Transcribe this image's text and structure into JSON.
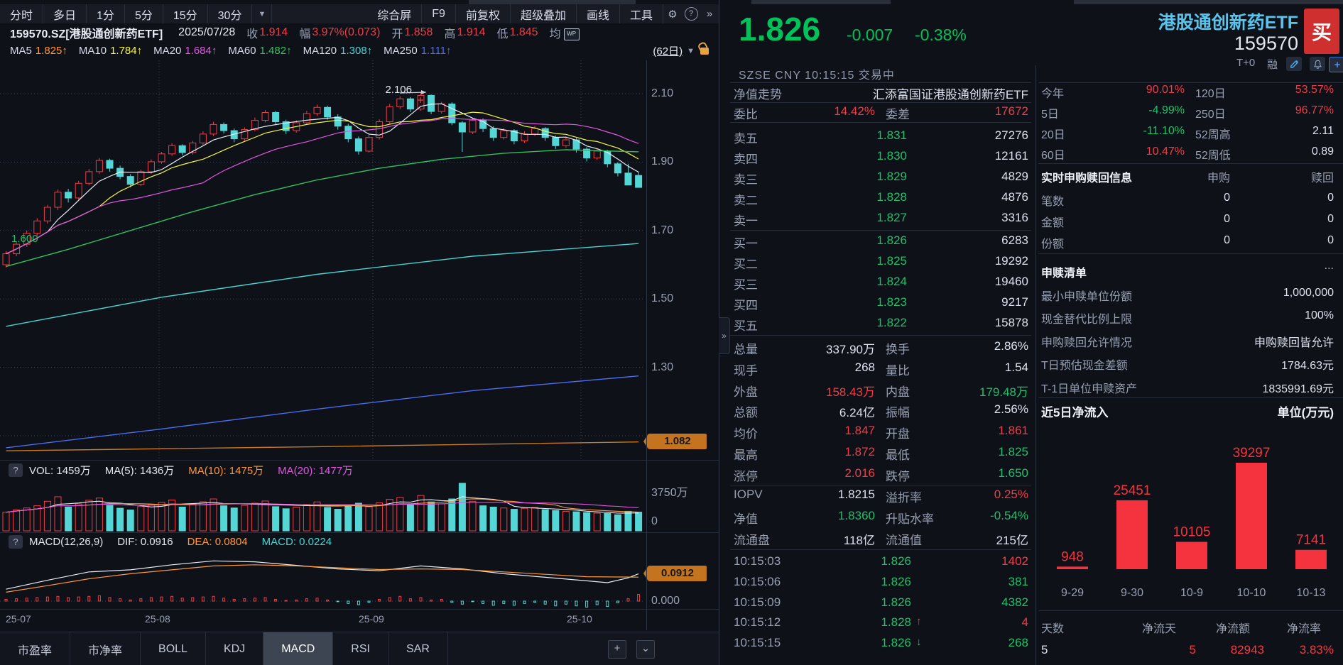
{
  "toolbar": {
    "left_tabs": [
      "分时",
      "多日",
      "1分",
      "5分",
      "15分",
      "30分"
    ],
    "dropdown": "▼",
    "right_tabs": [
      "综合屏",
      "F9",
      "前复权",
      "超级叠加",
      "画线",
      "工具"
    ],
    "gear": "⚙",
    "help": "?",
    "more": "»"
  },
  "info_bar": {
    "symbol": "159570.SZ[港股通创新药ETF]",
    "date": "2025/07/28",
    "pairs": [
      [
        "收",
        "1.914"
      ],
      [
        "幅",
        "3.97%(0.073)"
      ],
      [
        "开",
        "1.858"
      ],
      [
        "高",
        "1.914"
      ],
      [
        "低",
        "1.845"
      ],
      [
        "均",
        ""
      ]
    ],
    "wp": "WP"
  },
  "ma_bar": {
    "items": [
      [
        "MA5",
        "1.825↑",
        "#ff9838"
      ],
      [
        "MA10",
        "1.784↑",
        "#f5f542"
      ],
      [
        "MA20",
        "1.684↑",
        "#e256e2"
      ],
      [
        "MA60",
        "1.482↑",
        "#2fc05f"
      ],
      [
        "MA120",
        "1.308↑",
        "#49d3d3"
      ],
      [
        "MA250",
        "1.111↑",
        "#4a6cf0"
      ]
    ],
    "range": "(62日)",
    "caret": "▼"
  },
  "quote": {
    "price": "1.826",
    "change": "-0.007",
    "change_pct": "-0.38%",
    "name": "港股通创新药ETF",
    "code": "159570",
    "buy": "买",
    "exchange": "SZSE CNY 10:15:15 交易中",
    "tplus": "T+0",
    "rong": "融"
  },
  "nav_row": {
    "label": "净值走势",
    "value": "汇添富国证港股通创新药ETF"
  },
  "wb_row": {
    "l1": "委比",
    "v1": "14.42%",
    "l2": "委差",
    "v2": "17672"
  },
  "order_book": {
    "asks": [
      [
        "卖五",
        "1.831",
        "27276"
      ],
      [
        "卖四",
        "1.830",
        "12161"
      ],
      [
        "卖三",
        "1.829",
        "4829"
      ],
      [
        "卖二",
        "1.828",
        "4876"
      ],
      [
        "卖一",
        "1.827",
        "3316"
      ]
    ],
    "bids": [
      [
        "买一",
        "1.826",
        "6283"
      ],
      [
        "买二",
        "1.825",
        "19292"
      ],
      [
        "买三",
        "1.824",
        "19460"
      ],
      [
        "买四",
        "1.823",
        "9217"
      ],
      [
        "买五",
        "1.822",
        "15878"
      ]
    ]
  },
  "stats": [
    [
      "总量",
      "337.90万",
      "w",
      "换手",
      "2.86%",
      "w"
    ],
    [
      "现手",
      "268",
      "w",
      "量比",
      "1.54",
      "w"
    ],
    [
      "外盘",
      "158.43万",
      "r",
      "内盘",
      "179.48万",
      "g"
    ],
    [
      "总额",
      "6.24亿",
      "w",
      "振幅",
      "2.56%",
      "w"
    ],
    [
      "均价",
      "1.847",
      "r",
      "开盘",
      "1.861",
      "r"
    ],
    [
      "最高",
      "1.872",
      "r",
      "最低",
      "1.825",
      "g"
    ],
    [
      "涨停",
      "2.016",
      "r",
      "跌停",
      "1.650",
      "g"
    ]
  ],
  "stats2": [
    [
      "IOPV",
      "1.8215",
      "w",
      "溢折率",
      "0.25%",
      "r"
    ],
    [
      "净值",
      "1.8360",
      "g",
      "升贴水率",
      "-0.54%",
      "g"
    ],
    [
      "流通盘",
      "118亿",
      "w",
      "流通值",
      "215亿",
      "w"
    ]
  ],
  "ticks": [
    [
      "10:15:03",
      "1.826",
      "",
      "1402",
      "r"
    ],
    [
      "10:15:06",
      "1.826",
      "",
      "381",
      "g"
    ],
    [
      "10:15:09",
      "1.826",
      "",
      "4382",
      "g"
    ],
    [
      "10:15:12",
      "1.828",
      "u",
      "4",
      "r"
    ],
    [
      "10:15:15",
      "1.826",
      "d",
      "268",
      "g"
    ]
  ],
  "perf": [
    [
      "今年",
      "90.01%",
      "r",
      "120日",
      "53.57%",
      "r"
    ],
    [
      "5日",
      "-4.99%",
      "g",
      "250日",
      "96.77%",
      "r"
    ],
    [
      "20日",
      "-11.10%",
      "g",
      "52周高",
      "2.11",
      "w"
    ],
    [
      "60日",
      "10.47%",
      "r",
      "52周低",
      "0.89",
      "w"
    ]
  ],
  "subscribe": {
    "title": "实时申购赎回信息",
    "col1": "申购",
    "col2": "赎回",
    "rows": [
      [
        "笔数",
        "0",
        "0"
      ],
      [
        "金额",
        "0",
        "0"
      ],
      [
        "份额",
        "0",
        "0"
      ]
    ]
  },
  "redeem": {
    "title": "申赎清单",
    "more": "...",
    "rows": [
      [
        "最小申赎单位份额",
        "1,000,000"
      ],
      [
        "现金替代比例上限",
        "100%"
      ],
      [
        "申购赎回允许情况",
        "申购赎回皆允许"
      ],
      [
        "T日预估现金差额",
        "1784.63元"
      ],
      [
        "T-1日单位申赎资产",
        "1835991.69元"
      ]
    ]
  },
  "netflow_footer": [
    [
      "天数",
      "5",
      "w"
    ],
    [
      "净流天",
      "5",
      "r"
    ],
    [
      "净流额",
      "82943",
      "r"
    ],
    [
      "净流率",
      "3.83%",
      "r"
    ]
  ],
  "vol_header": {
    "q": "?",
    "items": [
      [
        "VOL: 1459万",
        "#e4e8f2"
      ],
      [
        "MA(5): 1436万",
        "#e4e8f2"
      ],
      [
        "MA(10): 1475万",
        "#ff9838"
      ],
      [
        "MA(20): 1477万",
        "#e256e2"
      ]
    ]
  },
  "macd_header": {
    "q": "?",
    "items": [
      [
        "MACD(12,26,9)",
        "#e4e8f2"
      ],
      [
        "DIF: 0.0916",
        "#e4e8f2"
      ],
      [
        "DEA: 0.0804",
        "#ff9838"
      ],
      [
        "MACD: 0.0224",
        "#49d3d3"
      ]
    ]
  },
  "bottom_tabs": {
    "tabs": [
      "市盈率",
      "市净率",
      "BOLL",
      "KDJ",
      "MACD",
      "RSI",
      "SAR"
    ],
    "active": "MACD",
    "plus": "+",
    "collapse": "⌄"
  },
  "expander": "»",
  "chart_data": [
    {
      "id": "main",
      "type": "candlestick",
      "title": "港股通创新药ETF 日K (62日)",
      "y_ticks": [
        "2.10",
        "1.90",
        "1.70",
        "1.50",
        "1.30"
      ],
      "ylim": [
        1.03,
        2.2
      ],
      "x_labels": [
        "25-07",
        "25-08",
        "25-09",
        "25-10"
      ],
      "annotations": {
        "peak_label": "2.106",
        "peak_index": 40,
        "left_label": "1.600",
        "axis_badge": "1.082"
      },
      "up_color": "#f23c46",
      "down_color": "#54d6d6",
      "ma_computed": [
        [
          "MA5",
          "#e8ecf4",
          5
        ],
        [
          "MA10",
          "#f5f542",
          10
        ],
        [
          "MA20",
          "#e256e2",
          20
        ]
      ],
      "overlays": [
        {
          "name": "MA60",
          "color": "#2fc05f",
          "points": [
            [
              0,
              1.595
            ],
            [
              6,
              1.645
            ],
            [
              12,
              1.7
            ],
            [
              18,
              1.755
            ],
            [
              24,
              1.805
            ],
            [
              30,
              1.848
            ],
            [
              36,
              1.882
            ],
            [
              42,
              1.908
            ],
            [
              48,
              1.926
            ],
            [
              54,
              1.936
            ],
            [
              61,
              1.93
            ]
          ]
        },
        {
          "name": "MA120",
          "color": "#49d3d3",
          "points": [
            [
              0,
              1.42
            ],
            [
              15,
              1.505
            ],
            [
              30,
              1.572
            ],
            [
              45,
              1.625
            ],
            [
              61,
              1.662
            ]
          ]
        },
        {
          "name": "MA250",
          "color": "#4a6cf0",
          "points": [
            [
              0,
              1.065
            ],
            [
              15,
              1.12
            ],
            [
              30,
              1.178
            ],
            [
              45,
              1.232
            ],
            [
              61,
              1.275
            ]
          ]
        },
        {
          "name": "annual-line",
          "color": "#c97a22",
          "points": [
            [
              0,
              1.056
            ],
            [
              30,
              1.068
            ],
            [
              61,
              1.082
            ]
          ]
        }
      ],
      "candles": [
        [
          1.6,
          1.64,
          1.592,
          1.632
        ],
        [
          1.632,
          1.668,
          1.625,
          1.66
        ],
        [
          1.66,
          1.7,
          1.652,
          1.692
        ],
        [
          1.692,
          1.736,
          1.685,
          1.728
        ],
        [
          1.728,
          1.775,
          1.72,
          1.768
        ],
        [
          1.768,
          1.82,
          1.76,
          1.812
        ],
        [
          1.812,
          1.822,
          1.782,
          1.795
        ],
        [
          1.795,
          1.845,
          1.79,
          1.838
        ],
        [
          1.838,
          1.88,
          1.832,
          1.872
        ],
        [
          1.872,
          1.912,
          1.865,
          1.905
        ],
        [
          1.905,
          1.91,
          1.872,
          1.882
        ],
        [
          1.882,
          1.89,
          1.85,
          1.858
        ],
        [
          1.858,
          1.865,
          1.826,
          1.835
        ],
        [
          1.835,
          1.878,
          1.83,
          1.872
        ],
        [
          1.872,
          1.908,
          1.866,
          1.901
        ],
        [
          1.901,
          1.93,
          1.895,
          1.924
        ],
        [
          1.924,
          1.955,
          1.918,
          1.948
        ],
        [
          1.948,
          1.952,
          1.92,
          1.928
        ],
        [
          1.928,
          1.962,
          1.922,
          1.956
        ],
        [
          1.956,
          1.99,
          1.95,
          1.982
        ],
        [
          1.982,
          2.018,
          1.976,
          2.01
        ],
        [
          2.01,
          2.016,
          1.984,
          1.992
        ],
        [
          1.992,
          1.998,
          1.958,
          1.968
        ],
        [
          1.968,
          2.002,
          1.962,
          1.995
        ],
        [
          1.995,
          2.03,
          1.99,
          2.022
        ],
        [
          2.022,
          2.052,
          2.016,
          2.045
        ],
        [
          2.045,
          2.05,
          2.01,
          2.018
        ],
        [
          2.018,
          2.024,
          1.982,
          1.992
        ],
        [
          1.992,
          2.022,
          1.986,
          2.015
        ],
        [
          2.015,
          2.05,
          2.01,
          2.042
        ],
        [
          2.042,
          2.068,
          2.036,
          2.06
        ],
        [
          2.06,
          2.065,
          2.024,
          2.032
        ],
        [
          2.032,
          2.04,
          1.995,
          2.005
        ],
        [
          2.005,
          2.012,
          1.958,
          1.968
        ],
        [
          1.968,
          1.975,
          1.922,
          1.932
        ],
        [
          1.932,
          1.98,
          1.928,
          1.972
        ],
        [
          1.972,
          2.025,
          1.966,
          2.018
        ],
        [
          2.018,
          2.07,
          2.012,
          2.062
        ],
        [
          2.062,
          2.092,
          2.055,
          2.085
        ],
        [
          2.085,
          2.09,
          2.046,
          2.055
        ],
        [
          2.055,
          2.106,
          2.05,
          2.095
        ],
        [
          2.095,
          2.098,
          2.04,
          2.048
        ],
        [
          2.048,
          2.076,
          2.042,
          2.07
        ],
        [
          2.07,
          2.075,
          2.008,
          2.015
        ],
        [
          2.015,
          2.02,
          1.93,
          1.988
        ],
        [
          1.988,
          2.03,
          1.982,
          2.022
        ],
        [
          2.022,
          2.028,
          1.988,
          1.998
        ],
        [
          1.998,
          2.005,
          1.962,
          1.972
        ],
        [
          1.972,
          2.0,
          1.966,
          1.992
        ],
        [
          1.992,
          1.996,
          1.952,
          1.962
        ],
        [
          1.962,
          1.99,
          1.956,
          1.982
        ],
        [
          1.982,
          2.006,
          1.976,
          1.998
        ],
        [
          1.998,
          2.002,
          1.962,
          1.972
        ],
        [
          1.972,
          1.978,
          1.938,
          1.948
        ],
        [
          1.948,
          1.972,
          1.942,
          1.965
        ],
        [
          1.965,
          1.97,
          1.928,
          1.938
        ],
        [
          1.938,
          1.944,
          1.902,
          1.912
        ],
        [
          1.912,
          1.94,
          1.906,
          1.932
        ],
        [
          1.932,
          1.936,
          1.885,
          1.895
        ],
        [
          1.895,
          1.9,
          1.858,
          1.868
        ],
        [
          1.868,
          1.895,
          1.852,
          1.833
        ],
        [
          1.861,
          1.872,
          1.825,
          1.826
        ]
      ]
    },
    {
      "id": "volume",
      "type": "bar",
      "name": "VOL",
      "y_max_label": "3750万",
      "y_zero_label": "0",
      "y_max": 3750,
      "values": [
        1450,
        1630,
        1780,
        1950,
        2300,
        2650,
        1850,
        2100,
        2380,
        2550,
        1980,
        1760,
        1620,
        1890,
        2050,
        2220,
        2400,
        1850,
        2080,
        2260,
        2480,
        1950,
        1780,
        1980,
        2150,
        2320,
        1880,
        1720,
        1850,
        2050,
        2250,
        1820,
        1680,
        1950,
        2150,
        1880,
        2180,
        2450,
        2600,
        2050,
        2750,
        2250,
        2100,
        2480,
        3700,
        2300,
        1950,
        1850,
        1780,
        1680,
        1750,
        1820,
        1650,
        1580,
        1520,
        1480,
        1420,
        1380,
        1350,
        1250,
        1520,
        1459
      ]
    },
    {
      "id": "macd",
      "type": "line",
      "zero_label": "0.000",
      "badge": "0.0912",
      "dif": [
        [
          0,
          0.04
        ],
        [
          4,
          0.07
        ],
        [
          8,
          0.098
        ],
        [
          12,
          0.105
        ],
        [
          16,
          0.122
        ],
        [
          20,
          0.135
        ],
        [
          24,
          0.132
        ],
        [
          28,
          0.12
        ],
        [
          32,
          0.108
        ],
        [
          36,
          0.102
        ],
        [
          40,
          0.118
        ],
        [
          44,
          0.108
        ],
        [
          48,
          0.092
        ],
        [
          52,
          0.08
        ],
        [
          56,
          0.068
        ],
        [
          58,
          0.062
        ],
        [
          60,
          0.078
        ],
        [
          61,
          0.0916
        ]
      ],
      "dea": [
        [
          0,
          0.03
        ],
        [
          4,
          0.052
        ],
        [
          8,
          0.075
        ],
        [
          12,
          0.092
        ],
        [
          16,
          0.105
        ],
        [
          20,
          0.118
        ],
        [
          24,
          0.122
        ],
        [
          28,
          0.118
        ],
        [
          32,
          0.112
        ],
        [
          36,
          0.106
        ],
        [
          40,
          0.108
        ],
        [
          44,
          0.106
        ],
        [
          48,
          0.098
        ],
        [
          52,
          0.09
        ],
        [
          56,
          0.082
        ],
        [
          61,
          0.0804
        ]
      ],
      "hist": [
        0.006,
        0.008,
        0.01,
        0.012,
        0.014,
        0.016,
        0.012,
        0.014,
        0.016,
        0.018,
        0.012,
        0.008,
        0.004,
        0.008,
        0.012,
        0.014,
        0.016,
        0.01,
        0.012,
        0.014,
        0.016,
        0.01,
        0.006,
        0.008,
        0.01,
        0.012,
        0.006,
        0.002,
        0.004,
        0.008,
        0.01,
        0.004,
        -0.002,
        -0.008,
        -0.012,
        -0.004,
        0.006,
        0.012,
        0.016,
        0.008,
        0.012,
        0.004,
        0.006,
        -0.004,
        -0.01,
        -0.002,
        -0.008,
        -0.014,
        -0.008,
        -0.014,
        -0.008,
        -0.004,
        -0.01,
        -0.016,
        -0.01,
        -0.016,
        -0.02,
        -0.012,
        -0.018,
        -0.006,
        0.008,
        0.0224
      ]
    },
    {
      "id": "netflow",
      "type": "bar",
      "title": "近5日净流入",
      "unit": "单位(万元)",
      "categories": [
        "9-29",
        "9-30",
        "10-9",
        "10-10",
        "10-13"
      ],
      "values": [
        948,
        25451,
        10105,
        39297,
        7141
      ],
      "bar_color": "#f5333f"
    }
  ],
  "colors": {
    "red": "#f43b45",
    "green": "#1ec26a",
    "white": "#dce1ee",
    "big_green": "#00c25a",
    "name_cyan": "#5bc4ec",
    "label_grey": "#98a0b4"
  }
}
